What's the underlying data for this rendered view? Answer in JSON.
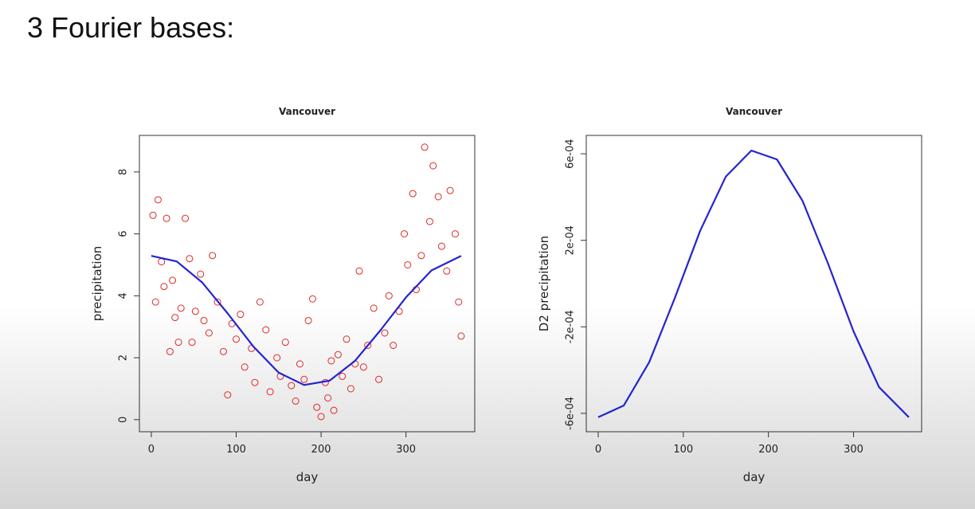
{
  "slide_title": "3 Fourier bases:",
  "chart_data": [
    {
      "type": "scatter",
      "title": "Vancouver",
      "x_label": "day",
      "y_label": "precipitation",
      "xlim": [
        -14,
        381
      ],
      "ylim": [
        -0.39,
        9.18
      ],
      "xticks": [
        0,
        100,
        200,
        300
      ],
      "yticks": [
        0,
        2,
        4,
        6,
        8
      ],
      "series": [
        {
          "type": "scatter",
          "color": "#e02828",
          "x": [
            2,
            5,
            8,
            12,
            15,
            18,
            22,
            25,
            28,
            32,
            35,
            40,
            45,
            48,
            52,
            58,
            62,
            68,
            72,
            78,
            85,
            90,
            95,
            100,
            105,
            110,
            118,
            122,
            128,
            135,
            140,
            148,
            152,
            158,
            165,
            170,
            175,
            180,
            185,
            190,
            195,
            200,
            205,
            208,
            212,
            215,
            220,
            225,
            230,
            235,
            240,
            245,
            250,
            255,
            262,
            268,
            275,
            280,
            285,
            292,
            298,
            302,
            308,
            312,
            318,
            322,
            328,
            332,
            338,
            342,
            348,
            352,
            358,
            362,
            365
          ],
          "values": [
            6.6,
            3.8,
            7.1,
            5.1,
            4.3,
            6.5,
            2.2,
            4.5,
            3.3,
            2.5,
            3.6,
            6.5,
            5.2,
            2.5,
            3.5,
            4.7,
            3.2,
            2.8,
            5.3,
            3.8,
            2.2,
            0.8,
            3.1,
            2.6,
            3.4,
            1.7,
            2.3,
            1.2,
            3.8,
            2.9,
            0.9,
            2.0,
            1.4,
            2.5,
            1.1,
            0.6,
            1.8,
            1.3,
            3.2,
            3.9,
            0.4,
            0.1,
            1.2,
            0.7,
            1.9,
            0.3,
            2.1,
            1.4,
            2.6,
            1.0,
            1.8,
            4.8,
            1.7,
            2.4,
            3.6,
            1.3,
            2.8,
            4.0,
            2.4,
            3.5,
            6.0,
            5.0,
            7.3,
            4.2,
            5.3,
            8.8,
            6.4,
            8.2,
            7.2,
            5.6,
            4.8,
            7.4,
            6.0,
            3.8,
            2.7
          ]
        },
        {
          "type": "line",
          "color": "#2424d0",
          "x": [
            0,
            30,
            60,
            90,
            120,
            150,
            180,
            210,
            240,
            270,
            300,
            330,
            365
          ],
          "values": [
            5.29,
            5.11,
            4.43,
            3.43,
            2.37,
            1.52,
            1.12,
            1.26,
            1.9,
            2.89,
            3.95,
            4.82,
            5.29
          ]
        }
      ]
    },
    {
      "type": "line",
      "title": "Vancouver",
      "x_label": "day",
      "y_label": "D2 precipitation",
      "xlim": [
        -14,
        380
      ],
      "ylim": [
        -0.000685,
        0.000685
      ],
      "xticks": [
        0,
        100,
        200,
        300
      ],
      "yticks": [
        {
          "value": -0.0006,
          "label": "-6e-04"
        },
        {
          "value": -0.0002,
          "label": "-2e-04"
        },
        {
          "value": 0.0002,
          "label": "2e-04"
        },
        {
          "value": 0.0006,
          "label": "6e-04"
        }
      ],
      "series": [
        {
          "type": "line",
          "color": "#2424d0",
          "x": [
            0,
            30,
            60,
            90,
            120,
            150,
            180,
            210,
            240,
            270,
            300,
            330,
            365
          ],
          "values": [
            -0.000618,
            -0.000564,
            -0.000363,
            -6.7e-05,
            0.000246,
            0.000495,
            0.000615,
            0.000574,
            0.000383,
            9.3e-05,
            -0.000221,
            -0.000479,
            -0.000618
          ]
        }
      ]
    }
  ]
}
